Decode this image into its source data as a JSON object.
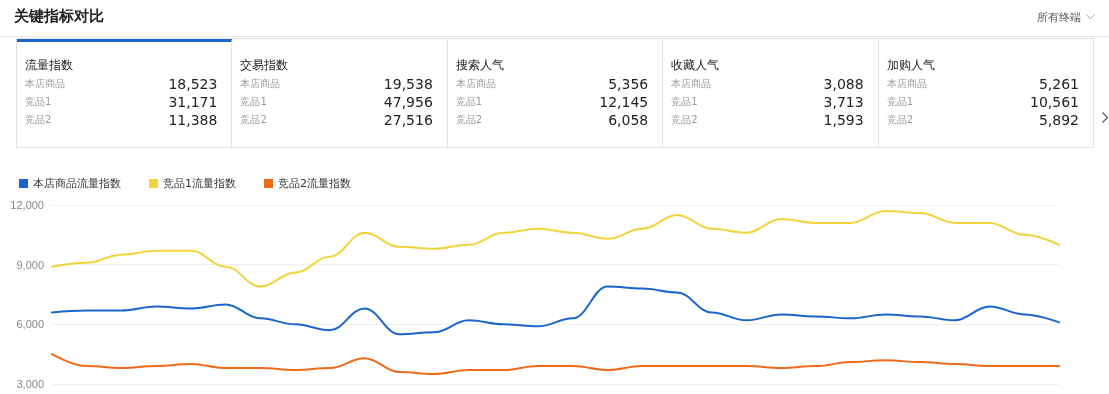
{
  "chart_data": [
    {
      "type": "other",
      "title": "关键指标对比",
      "annotations": [
        "所有终端",
        "流量指数",
        "本店商品",
        "18,523",
        "竞品1",
        "31,171",
        "竞品2",
        "11,388",
        "交易指数",
        "本店商品",
        "19,538",
        "竞品1",
        "47,956",
        "竞品2",
        "27,516",
        "搜索人气",
        "本店商品",
        "5,356",
        "竞品1",
        "12,145",
        "竞品2",
        "6,058",
        "收藏人气",
        "本店商品",
        "3,088",
        "竞品1",
        "3,713",
        "竞品2",
        "1,593",
        "加购人气",
        "本店商品",
        "5,261",
        "竞品1",
        "10,561",
        "竞品2",
        "5,892"
      ]
    },
    {
      "type": "line",
      "categories": [
        null,
        null,
        null,
        null,
        null,
        null,
        null,
        null,
        null,
        null,
        null,
        null,
        null,
        null,
        null,
        null,
        null,
        null,
        null,
        null,
        null,
        null,
        null,
        null,
        null,
        null,
        null,
        null,
        null,
        null
      ],
      "series": [
        {
          "name": "本店商品流量指数",
          "color": "#1a66cc",
          "values": [
            6600,
            6700,
            6700,
            6900,
            6800,
            7000,
            6300,
            6000,
            5700,
            6800,
            5500,
            5600,
            6200,
            6000,
            5900,
            6300,
            7900,
            7800,
            7600,
            6600,
            6200,
            6500,
            6400,
            6300,
            6500,
            6400,
            6200,
            6900,
            6500,
            6100
          ]
        },
        {
          "name": "竞品1流量指数",
          "color": "#f2d43a",
          "values": [
            8900,
            9100,
            9500,
            9700,
            9700,
            8900,
            7900,
            8600,
            9400,
            10600,
            9900,
            9800,
            10000,
            10600,
            10800,
            10600,
            10300,
            10800,
            11500,
            10800,
            10600,
            11300,
            11100,
            11100,
            11700,
            11600,
            11100,
            11100,
            10500,
            10000
          ]
        },
        {
          "name": "竞品2流量指数",
          "color": "#f06a1a",
          "values": [
            4500,
            3900,
            3800,
            3900,
            4000,
            3800,
            3800,
            3700,
            3800,
            4300,
            3600,
            3500,
            3700,
            3700,
            3900,
            3900,
            3700,
            3900,
            3900,
            3900,
            3900,
            3800,
            3900,
            4100,
            4200,
            4100,
            4000,
            3900,
            3900,
            3900
          ]
        }
      ],
      "ylim": [
        3000,
        12000
      ],
      "yticks": [
        {
          "value": 3000,
          "label": "3,000"
        },
        {
          "value": 6000,
          "label": "6,000"
        },
        {
          "value": 9000,
          "label": "9,000"
        },
        {
          "value": 12000,
          "label": "12,000"
        }
      ],
      "grid": "y",
      "legend": "top left",
      "marker": "none",
      "line_style": "solid"
    }
  ]
}
